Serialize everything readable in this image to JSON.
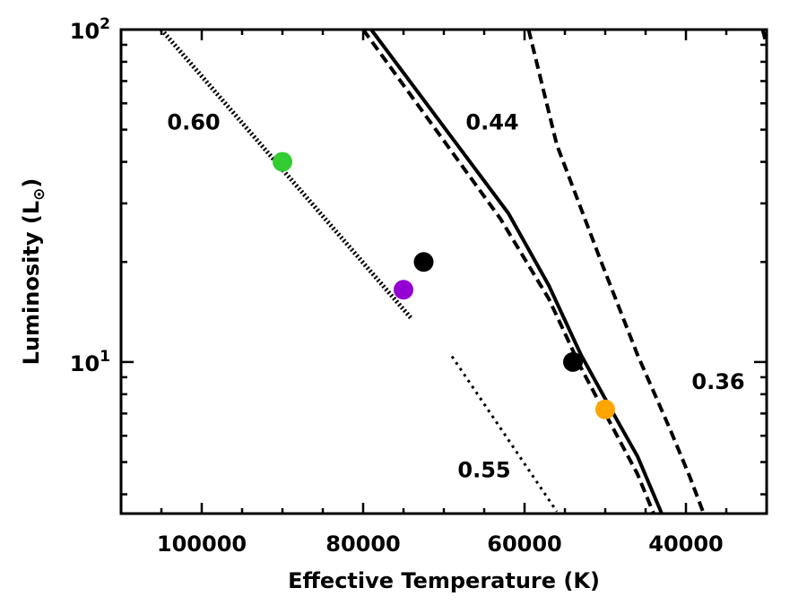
{
  "chart_data": {
    "type": "line",
    "title": "",
    "xlabel": "Effective Temperature (K)",
    "ylabel": "Luminosity (L⊙)",
    "x_reversed": true,
    "xlim": [
      110000,
      30000
    ],
    "ylim": [
      3.5,
      100
    ],
    "y_scale": "log",
    "x_ticks": [
      100000,
      80000,
      60000,
      40000
    ],
    "x_tick_labels": [
      "100000",
      "80000",
      "60000",
      "40000"
    ],
    "y_ticks": [
      10,
      100
    ],
    "y_tick_labels": [
      {
        "base": "10",
        "exp": "1"
      },
      {
        "base": "10",
        "exp": "2"
      }
    ],
    "grid": false,
    "series": [
      {
        "label": "0.60",
        "style": "dense-dotted",
        "color": "#000000",
        "x": [
          105000,
          74000
        ],
        "y": [
          100,
          13.5
        ]
      },
      {
        "label": "0.55",
        "style": "dotted",
        "color": "#000000",
        "x": [
          69000,
          56000
        ],
        "y": [
          10.4,
          3.55
        ]
      },
      {
        "label": "0.44",
        "style": "solid",
        "color": "#000000",
        "x": [
          79000,
          62000,
          57000,
          53000,
          49000,
          46000,
          43000
        ],
        "y": [
          100,
          28,
          17,
          10.5,
          7,
          5.2,
          3.5
        ]
      },
      {
        "label": "0.44",
        "style": "dashed",
        "color": "#000000",
        "x": [
          80000,
          63000,
          57000,
          53000,
          49000,
          46000,
          44000
        ],
        "y": [
          100,
          27,
          15.5,
          9.6,
          6.3,
          4.6,
          3.5
        ]
      },
      {
        "label": "0.36",
        "style": "dashed",
        "color": "#000000",
        "x": [
          59500,
          56000,
          50500,
          46000,
          42000,
          39500,
          37800
        ],
        "y": [
          100,
          45,
          20,
          10.5,
          6.3,
          4.5,
          3.5
        ]
      },
      {
        "label": "",
        "style": "dashed",
        "color": "#000000",
        "x": [
          30500,
          30000
        ],
        "y": [
          100,
          90
        ]
      }
    ],
    "points": [
      {
        "x": 90000,
        "y": 40,
        "color": "#33cc33"
      },
      {
        "x": 75000,
        "y": 16.5,
        "color": "#9400d3"
      },
      {
        "x": 72500,
        "y": 20,
        "color": "#000000"
      },
      {
        "x": 54000,
        "y": 10,
        "color": "#000000"
      },
      {
        "x": 50000,
        "y": 7.2,
        "color": "#ffa500"
      }
    ],
    "annotations": [
      {
        "text": "0.60",
        "x": 101000,
        "y": 50
      },
      {
        "text": "0.44",
        "x": 64000,
        "y": 50
      },
      {
        "text": "0.36",
        "x": 36000,
        "y": 8.3
      },
      {
        "text": "0.55",
        "x": 65000,
        "y": 4.5
      }
    ]
  }
}
